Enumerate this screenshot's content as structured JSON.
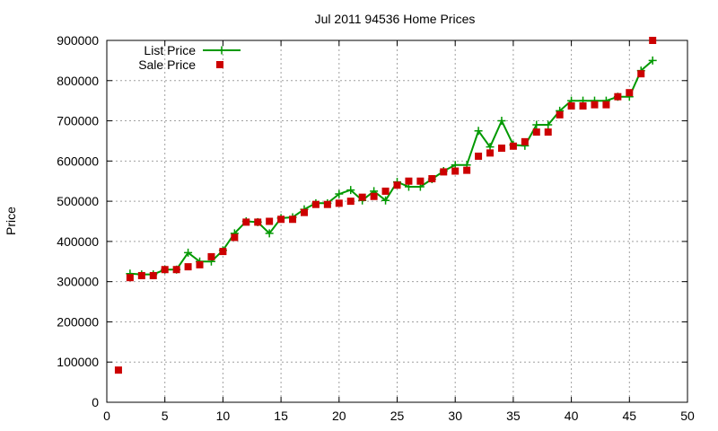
{
  "chart_data": {
    "type": "line",
    "title": "Jul 2011 94536 Home Prices",
    "xlabel": "",
    "ylabel": "Price",
    "xlim": [
      0,
      50
    ],
    "ylim": [
      0,
      900000
    ],
    "xticks": [
      0,
      5,
      10,
      15,
      20,
      25,
      30,
      35,
      40,
      45,
      50
    ],
    "yticks": [
      0,
      100000,
      200000,
      300000,
      400000,
      500000,
      600000,
      700000,
      800000,
      900000
    ],
    "grid": true,
    "legend_position": "top-left",
    "series": [
      {
        "name": "List Price",
        "style": "line-plus",
        "color": "#009900",
        "x": [
          2,
          3,
          4,
          5,
          6,
          7,
          8,
          9,
          10,
          11,
          12,
          13,
          14,
          15,
          16,
          17,
          18,
          19,
          20,
          21,
          22,
          23,
          24,
          25,
          26,
          27,
          28,
          29,
          30,
          31,
          32,
          33,
          34,
          35,
          36,
          37,
          38,
          39,
          40,
          41,
          42,
          43,
          44,
          45,
          46,
          47
        ],
        "y": [
          320000,
          318000,
          318000,
          330000,
          330000,
          372000,
          350000,
          350000,
          378000,
          420000,
          450000,
          448000,
          420000,
          458000,
          460000,
          480000,
          495000,
          495000,
          518000,
          528000,
          502000,
          525000,
          502000,
          548000,
          536000,
          536000,
          555000,
          575000,
          590000,
          590000,
          675000,
          635000,
          700000,
          640000,
          638000,
          690000,
          690000,
          725000,
          750000,
          750000,
          750000,
          750000,
          760000,
          760000,
          825000,
          850000
        ]
      },
      {
        "name": "Sale Price",
        "style": "square-points",
        "color": "#cc0000",
        "x": [
          1,
          2,
          3,
          4,
          5,
          6,
          7,
          8,
          9,
          10,
          11,
          12,
          13,
          14,
          15,
          16,
          17,
          18,
          19,
          20,
          21,
          22,
          23,
          24,
          25,
          26,
          27,
          28,
          29,
          30,
          31,
          32,
          33,
          34,
          35,
          36,
          37,
          38,
          39,
          40,
          41,
          42,
          43,
          44,
          45,
          46,
          47
        ],
        "y": [
          80000,
          310000,
          315000,
          315000,
          330000,
          330000,
          337000,
          342000,
          362000,
          375000,
          410000,
          448000,
          448000,
          450000,
          455000,
          455000,
          472000,
          492000,
          492000,
          495000,
          500000,
          510000,
          512000,
          525000,
          540000,
          550000,
          550000,
          556000,
          573000,
          575000,
          577000,
          612000,
          620000,
          632000,
          637000,
          648000,
          672000,
          672000,
          715000,
          737000,
          737000,
          740000,
          740000,
          760000,
          770000,
          817000,
          900000
        ]
      }
    ]
  }
}
